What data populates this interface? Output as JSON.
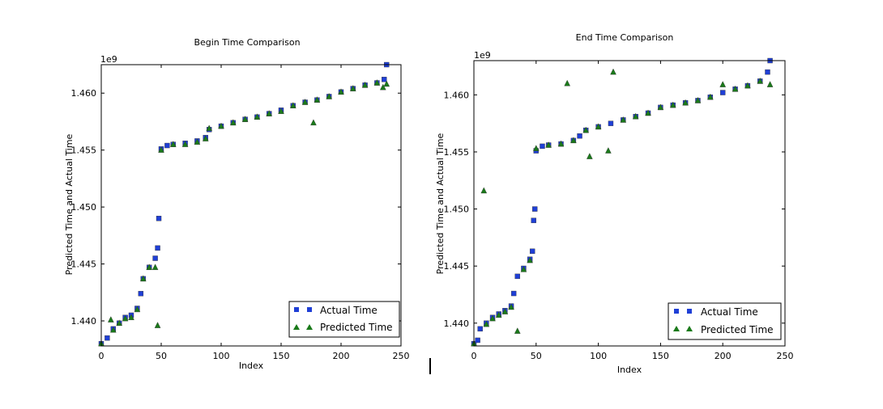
{
  "colors": {
    "actual": "#1f3fd6",
    "predicted": "#1a7a1a",
    "axes": "#000000",
    "legend_border": "#000000",
    "background": "#ffffff"
  },
  "chart_data": [
    {
      "type": "scatter",
      "title": "Begin Time Comparison",
      "xlabel": "Index",
      "ylabel": "Predicted Time and Actual Time",
      "offset_text": "1e9",
      "xlim": [
        0,
        250
      ],
      "ylim": [
        1.4378,
        1.4625
      ],
      "x_ticks": [
        0,
        50,
        100,
        150,
        200,
        250
      ],
      "x_tick_labels": [
        "0",
        "50",
        "100",
        "150",
        "200",
        "250"
      ],
      "y_ticks": [
        1.44,
        1.445,
        1.45,
        1.455,
        1.46
      ],
      "y_tick_labels": [
        "1.440",
        "1.445",
        "1.450",
        "1.455",
        "1.460"
      ],
      "grid": false,
      "legend_position": "lower-right",
      "series": [
        {
          "name": "Actual Time",
          "marker": "square",
          "x": [
            0,
            5,
            10,
            15,
            20,
            25,
            30,
            33,
            35,
            40,
            45,
            47,
            48,
            50,
            55,
            60,
            70,
            80,
            87,
            90,
            100,
            110,
            120,
            130,
            140,
            150,
            160,
            170,
            180,
            190,
            200,
            210,
            220,
            230,
            236,
            238
          ],
          "y": [
            1.438,
            1.4385,
            1.4393,
            1.4398,
            1.4403,
            1.4405,
            1.4411,
            1.4424,
            1.4437,
            1.4447,
            1.4455,
            1.4464,
            1.449,
            1.4551,
            1.4554,
            1.4555,
            1.4556,
            1.4558,
            1.4561,
            1.4568,
            1.4571,
            1.4574,
            1.4577,
            1.4579,
            1.4582,
            1.4585,
            1.4589,
            1.4592,
            1.4594,
            1.4597,
            1.4601,
            1.4604,
            1.4607,
            1.4609,
            1.4612,
            1.4627
          ]
        },
        {
          "name": "Predicted Time",
          "marker": "triangle",
          "x": [
            0,
            8,
            10,
            15,
            20,
            25,
            30,
            35,
            40,
            45,
            47,
            50,
            60,
            70,
            80,
            87,
            90,
            100,
            110,
            120,
            130,
            140,
            150,
            160,
            170,
            177,
            180,
            190,
            200,
            210,
            220,
            230,
            235,
            238
          ],
          "y": [
            1.438,
            1.4401,
            1.4392,
            1.4398,
            1.4402,
            1.4403,
            1.441,
            1.4437,
            1.4447,
            1.4447,
            1.4396,
            1.455,
            1.4555,
            1.4555,
            1.4557,
            1.456,
            1.4569,
            1.4571,
            1.4574,
            1.4577,
            1.4579,
            1.4582,
            1.4584,
            1.4589,
            1.4592,
            1.4574,
            1.4594,
            1.4597,
            1.4601,
            1.4604,
            1.4607,
            1.4609,
            1.4605,
            1.4608
          ]
        }
      ]
    },
    {
      "type": "scatter",
      "title": "End Time Comparison",
      "xlabel": "Index",
      "ylabel": "Predicted Time and Actual Time",
      "offset_text": "1e9",
      "xlim": [
        0,
        250
      ],
      "ylim": [
        1.438,
        1.463
      ],
      "x_ticks": [
        0,
        50,
        100,
        150,
        200,
        250
      ],
      "x_tick_labels": [
        "0",
        "50",
        "100",
        "150",
        "200",
        "250"
      ],
      "y_ticks": [
        1.44,
        1.445,
        1.45,
        1.455,
        1.46
      ],
      "y_tick_labels": [
        "1.440",
        "1.445",
        "1.450",
        "1.455",
        "1.460"
      ],
      "grid": false,
      "legend_position": "lower-right",
      "series": [
        {
          "name": "Actual Time",
          "marker": "square",
          "x": [
            0,
            3,
            5,
            10,
            15,
            20,
            25,
            30,
            32,
            35,
            40,
            45,
            47,
            48,
            49,
            50,
            55,
            60,
            70,
            80,
            85,
            90,
            100,
            110,
            120,
            130,
            140,
            150,
            160,
            170,
            180,
            190,
            200,
            210,
            220,
            230,
            236,
            238
          ],
          "y": [
            1.4382,
            1.4385,
            1.4395,
            1.44,
            1.4405,
            1.4408,
            1.4411,
            1.4415,
            1.4426,
            1.4441,
            1.4448,
            1.4456,
            1.4463,
            1.449,
            1.45,
            1.4551,
            1.4555,
            1.4556,
            1.4557,
            1.456,
            1.4564,
            1.4569,
            1.4572,
            1.4575,
            1.4578,
            1.4581,
            1.4584,
            1.4589,
            1.4591,
            1.4593,
            1.4595,
            1.4598,
            1.4602,
            1.4605,
            1.4608,
            1.4612,
            1.462,
            1.463
          ]
        },
        {
          "name": "Predicted Time",
          "marker": "triangle",
          "x": [
            0,
            8,
            10,
            15,
            20,
            25,
            30,
            35,
            40,
            45,
            50,
            60,
            70,
            75,
            80,
            90,
            93,
            100,
            108,
            112,
            120,
            130,
            140,
            150,
            160,
            170,
            180,
            190,
            200,
            210,
            220,
            230,
            238
          ],
          "y": [
            1.4382,
            1.4516,
            1.4399,
            1.4404,
            1.4407,
            1.441,
            1.4414,
            1.4393,
            1.4447,
            1.4455,
            1.4553,
            1.4556,
            1.4557,
            1.461,
            1.456,
            1.4569,
            1.4546,
            1.4572,
            1.4551,
            1.462,
            1.4578,
            1.4581,
            1.4584,
            1.4589,
            1.4591,
            1.4593,
            1.4595,
            1.4598,
            1.4609,
            1.4605,
            1.4608,
            1.4612,
            1.4609
          ]
        }
      ]
    }
  ]
}
